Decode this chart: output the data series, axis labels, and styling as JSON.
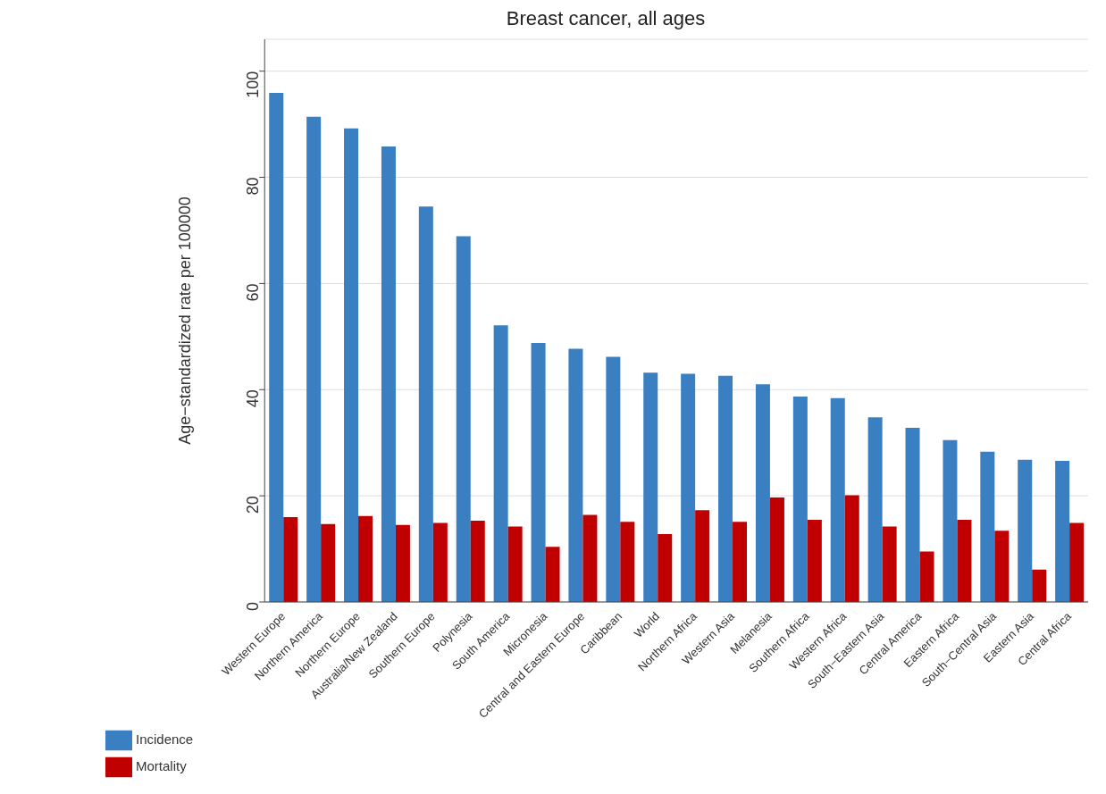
{
  "chart_data": {
    "type": "bar",
    "title": "Breast cancer, all ages",
    "ylabel": "Age−standardized rate per 100000",
    "categories": [
      "Western Europe",
      "Northern America",
      "Northern Europe",
      "Australia/New Zealand",
      "Southern Europe",
      "Polynesia",
      "South America",
      "Micronesia",
      "Central and Eastern Europe",
      "Caribbean",
      "World",
      "Northern Africa",
      "Western Asia",
      "Melanesia",
      "Southern Africa",
      "Western Africa",
      "South−Eastern Asia",
      "Central America",
      "Eastern Africa",
      "South−Central Asia",
      "Eastern Asia",
      "Central Africa"
    ],
    "series": [
      {
        "name": "Incidence",
        "color": "#3a7fc1",
        "values": [
          95.9,
          91.4,
          89.2,
          85.8,
          74.5,
          68.9,
          52.1,
          48.8,
          47.7,
          46.2,
          43.2,
          43.0,
          42.6,
          41.0,
          38.7,
          38.4,
          34.8,
          32.8,
          30.5,
          28.3,
          26.8,
          26.6
        ]
      },
      {
        "name": "Mortality",
        "color": "#c00000",
        "values": [
          16.0,
          14.7,
          16.2,
          14.5,
          14.9,
          15.3,
          14.2,
          10.4,
          16.4,
          15.1,
          12.8,
          17.3,
          15.1,
          19.7,
          15.5,
          20.1,
          14.2,
          9.5,
          15.5,
          13.4,
          6.1,
          14.9
        ]
      }
    ],
    "ylim": [
      0,
      106
    ],
    "yticks": [
      0,
      20,
      40,
      60,
      80,
      100
    ],
    "grid": "y",
    "legend": "bottom left"
  }
}
